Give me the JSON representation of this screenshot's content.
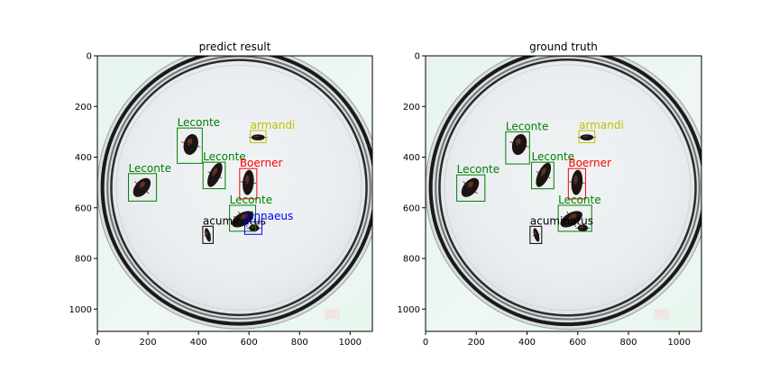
{
  "panels": [
    {
      "id": "predict",
      "title": "predict result",
      "boxes": [
        {
          "label": "Leconte",
          "color": "#008000",
          "x0": 316,
          "y0": 285,
          "x1": 415,
          "y1": 425
        },
        {
          "label": "armandi",
          "color": "#bfbf00",
          "x0": 605,
          "y0": 295,
          "x1": 667,
          "y1": 343
        },
        {
          "label": "Leconte",
          "color": "#008000",
          "x0": 418,
          "y0": 420,
          "x1": 506,
          "y1": 525
        },
        {
          "label": "Boerner",
          "color": "#ff0000",
          "x0": 563,
          "y0": 445,
          "x1": 631,
          "y1": 565
        },
        {
          "label": "Leconte",
          "color": "#008000",
          "x0": 123,
          "y0": 465,
          "x1": 234,
          "y1": 574
        },
        {
          "label": "Leconte",
          "color": "#008000",
          "x0": 523,
          "y0": 590,
          "x1": 626,
          "y1": 693
        },
        {
          "label": "acuminatus",
          "color": "#000000",
          "x0": 417,
          "y0": 673,
          "x1": 458,
          "y1": 741
        },
        {
          "label": "Linnaeus",
          "color": "#0000ff",
          "x0": 583,
          "y0": 655,
          "x1": 651,
          "y1": 705
        }
      ]
    },
    {
      "id": "truth",
      "title": "ground truth",
      "boxes": [
        {
          "label": "Leconte",
          "color": "#008000",
          "x0": 316,
          "y0": 300,
          "x1": 410,
          "y1": 427
        },
        {
          "label": "armandi",
          "color": "#bfbf00",
          "x0": 605,
          "y0": 295,
          "x1": 667,
          "y1": 343
        },
        {
          "label": "Leconte",
          "color": "#008000",
          "x0": 418,
          "y0": 420,
          "x1": 506,
          "y1": 525
        },
        {
          "label": "Boerner",
          "color": "#ff0000",
          "x0": 563,
          "y0": 445,
          "x1": 631,
          "y1": 565
        },
        {
          "label": "Leconte",
          "color": "#008000",
          "x0": 123,
          "y0": 470,
          "x1": 234,
          "y1": 574
        },
        {
          "label": "Leconte",
          "color": "#008000",
          "x0": 523,
          "y0": 590,
          "x1": 655,
          "y1": 693
        },
        {
          "label": "acuminatus",
          "color": "#000000",
          "x0": 412,
          "y0": 673,
          "x1": 458,
          "y1": 741
        }
      ]
    }
  ],
  "axes": {
    "xlim": [
      0,
      1088
    ],
    "ylim": [
      1088,
      0
    ],
    "xticks": [
      0,
      200,
      400,
      600,
      800,
      1000
    ],
    "yticks": [
      0,
      200,
      400,
      600,
      800,
      1000
    ]
  },
  "insects": [
    {
      "cx": 370,
      "cy": 350,
      "rx": 28,
      "ry": 42,
      "rot": 15
    },
    {
      "cx": 636,
      "cy": 322,
      "rx": 26,
      "ry": 12,
      "rot": 0
    },
    {
      "cx": 465,
      "cy": 470,
      "rx": 22,
      "ry": 52,
      "rot": 25
    },
    {
      "cx": 597,
      "cy": 500,
      "rx": 22,
      "ry": 50,
      "rot": 5
    },
    {
      "cx": 176,
      "cy": 520,
      "rx": 26,
      "ry": 44,
      "rot": 40
    },
    {
      "cx": 575,
      "cy": 645,
      "rx": 25,
      "ry": 48,
      "rot": 60
    },
    {
      "cx": 437,
      "cy": 707,
      "rx": 10,
      "ry": 28,
      "rot": -15
    },
    {
      "cx": 620,
      "cy": 680,
      "rx": 20,
      "ry": 14,
      "rot": 0
    }
  ]
}
